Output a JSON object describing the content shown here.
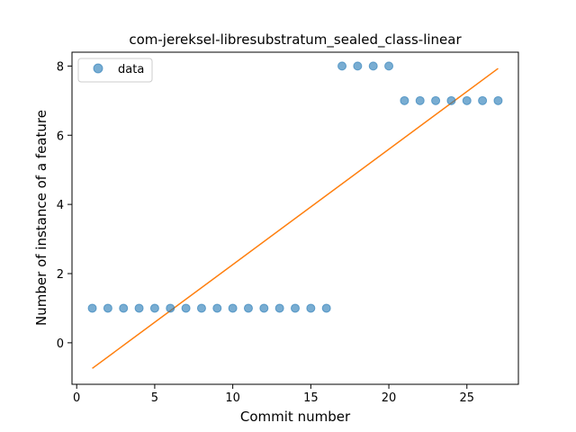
{
  "chart_data": {
    "type": "scatter",
    "title": "com-jereksel-libresubstratum_sealed_class-linear",
    "xlabel": "Commit number",
    "ylabel": "Number of instance of a feature",
    "xlim": [
      -0.3,
      28.3
    ],
    "ylim": [
      -1.2,
      8.4
    ],
    "xticks": [
      0,
      5,
      10,
      15,
      20,
      25
    ],
    "yticks": [
      0,
      2,
      4,
      6,
      8
    ],
    "grid": false,
    "legend": {
      "placement": "top-left",
      "entries": [
        "data"
      ]
    },
    "colors": {
      "points": "#1f77b4",
      "fit": "#ff7f0e"
    },
    "series": [
      {
        "name": "data",
        "kind": "scatter",
        "x": [
          1,
          2,
          3,
          4,
          5,
          6,
          7,
          8,
          9,
          10,
          11,
          12,
          13,
          14,
          15,
          16,
          17,
          18,
          19,
          20,
          21,
          22,
          23,
          24,
          25,
          26,
          27
        ],
        "y": [
          1,
          1,
          1,
          1,
          1,
          1,
          1,
          1,
          1,
          1,
          1,
          1,
          1,
          1,
          1,
          1,
          8,
          8,
          8,
          8,
          7,
          7,
          7,
          7,
          7,
          7,
          7
        ]
      },
      {
        "kind": "line",
        "x": [
          1,
          27
        ],
        "y": [
          -0.74,
          7.93
        ]
      }
    ]
  }
}
